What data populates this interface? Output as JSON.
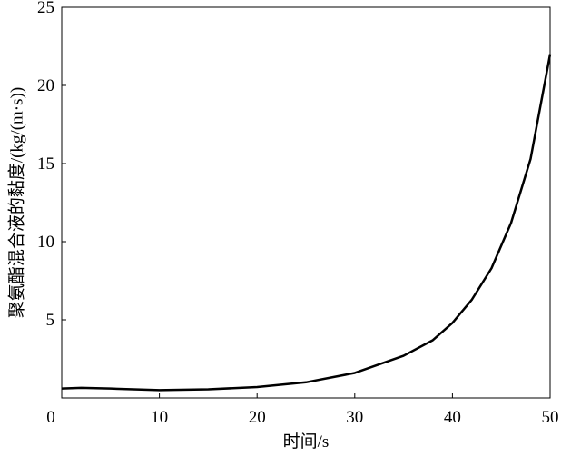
{
  "chart_data": {
    "type": "line",
    "x_label": "时间/s",
    "y_label": "聚氨酯混合液的黏度/(kg/(m·s))",
    "x": [
      0,
      2,
      5,
      10,
      15,
      20,
      25,
      30,
      35,
      38,
      40,
      42,
      44,
      46,
      48,
      50
    ],
    "series": [
      {
        "name": "viscosity",
        "color": "#000000",
        "values": [
          0.6,
          0.65,
          0.6,
          0.5,
          0.55,
          0.7,
          1.0,
          1.6,
          2.7,
          3.7,
          4.8,
          6.3,
          8.3,
          11.2,
          15.3,
          22
        ]
      }
    ],
    "xlim": [
      0,
      50
    ],
    "xticks": [
      0,
      10,
      20,
      30,
      40,
      50
    ],
    "ylim": [
      0,
      25
    ],
    "yticks": [
      5,
      10,
      15,
      20,
      25
    ]
  }
}
